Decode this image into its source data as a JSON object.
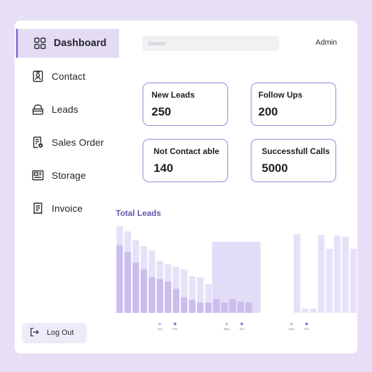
{
  "sidebar": {
    "items": [
      {
        "label": "Dashboard",
        "icon": "dashboard-icon",
        "active": true
      },
      {
        "label": "Contact",
        "icon": "contact-icon",
        "active": false
      },
      {
        "label": "Leads",
        "icon": "leads-icon",
        "active": false
      },
      {
        "label": "Sales Order",
        "icon": "sales-order-icon",
        "active": false
      },
      {
        "label": "Storage",
        "icon": "storage-icon",
        "active": false
      },
      {
        "label": "Invoice",
        "icon": "invoice-icon",
        "active": false
      }
    ],
    "logout_label": "Log Out"
  },
  "header": {
    "search_placeholder": "Search",
    "user": "Admin"
  },
  "stats": [
    {
      "title": "New Leads",
      "value": "250"
    },
    {
      "title": "Follow Ups",
      "value": "200"
    },
    {
      "title": "Not Contact able",
      "value": "140"
    },
    {
      "title": "Successfull Calls",
      "value": "5000"
    }
  ],
  "colors": {
    "accent": "#8f7ad6",
    "bar_dark": "#c8bcee",
    "bar_light": "#e5dff8",
    "title": "#6657a8",
    "background": "#e6dff5"
  },
  "chart_data": {
    "type": "bar",
    "title": "Total Leads",
    "xlabel": "",
    "ylabel": "",
    "ylim": [
      0,
      100
    ],
    "grid": false,
    "legend": "none",
    "series": [
      {
        "values": [
          100,
          94,
          84,
          77,
          72,
          60,
          56,
          53,
          50,
          42,
          41,
          33,
          0,
          0,
          0,
          0,
          0,
          0,
          0,
          0,
          0,
          0,
          91,
          5,
          5,
          90,
          74,
          89,
          88,
          74,
          89
        ]
      },
      {
        "values": [
          78,
          70,
          58,
          50,
          41,
          39,
          36,
          28,
          18,
          15,
          12,
          12,
          16,
          12,
          16,
          13,
          12,
          0,
          0,
          0,
          0,
          0,
          0,
          0,
          0,
          0,
          0,
          0,
          0,
          0,
          0
        ]
      }
    ],
    "highlight_span": [
      12,
      17
    ],
    "tick_markers": [
      {
        "label": "Jan",
        "active": false
      },
      {
        "label": "Feb",
        "active": true
      },
      {
        "label": "May",
        "active": false
      },
      {
        "label": "Jun",
        "active": true
      },
      {
        "label": "Sep",
        "active": false
      },
      {
        "label": "Oct",
        "active": true
      }
    ]
  }
}
